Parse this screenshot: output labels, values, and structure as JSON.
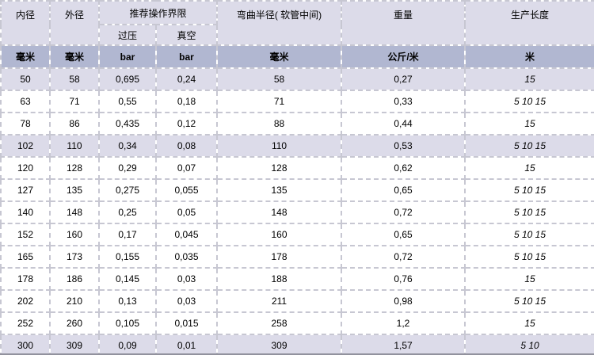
{
  "table": {
    "group_header": "推荐操作界限",
    "columns": [
      {
        "key": "inner_diameter",
        "label": "内径",
        "unit": "毫米"
      },
      {
        "key": "outer_diameter",
        "label": "外径",
        "unit": "毫米"
      },
      {
        "key": "overpressure",
        "label": "过压",
        "unit": "bar"
      },
      {
        "key": "vacuum",
        "label": "真空",
        "unit": "bar"
      },
      {
        "key": "bend_radius",
        "label": "弯曲半径( 软管中间)",
        "unit": "毫米"
      },
      {
        "key": "weight",
        "label": "重量",
        "unit": "公斤/米"
      },
      {
        "key": "production_length",
        "label": "生产长度",
        "unit": "米"
      }
    ],
    "rows": [
      {
        "shaded": true,
        "values": [
          "50",
          "58",
          "0,695",
          "0,24",
          "58",
          "0,27",
          "15"
        ]
      },
      {
        "shaded": false,
        "values": [
          "63",
          "71",
          "0,55",
          "0,18",
          "71",
          "0,33",
          "5 10 15"
        ]
      },
      {
        "shaded": false,
        "values": [
          "78",
          "86",
          "0,435",
          "0,12",
          "88",
          "0,44",
          "15"
        ]
      },
      {
        "shaded": true,
        "values": [
          "102",
          "110",
          "0,34",
          "0,08",
          "110",
          "0,53",
          "5 10 15"
        ]
      },
      {
        "shaded": false,
        "values": [
          "120",
          "128",
          "0,29",
          "0,07",
          "128",
          "0,62",
          "15"
        ]
      },
      {
        "shaded": false,
        "values": [
          "127",
          "135",
          "0,275",
          "0,055",
          "135",
          "0,65",
          "5 10 15"
        ]
      },
      {
        "shaded": false,
        "values": [
          "140",
          "148",
          "0,25",
          "0,05",
          "148",
          "0,72",
          "5 10 15"
        ]
      },
      {
        "shaded": false,
        "values": [
          "152",
          "160",
          "0,17",
          "0,045",
          "160",
          "0,65",
          "5 10 15"
        ]
      },
      {
        "shaded": false,
        "values": [
          "165",
          "173",
          "0,155",
          "0,035",
          "178",
          "0,72",
          "5 10 15"
        ]
      },
      {
        "shaded": false,
        "values": [
          "178",
          "186",
          "0,145",
          "0,03",
          "188",
          "0,76",
          "15"
        ]
      },
      {
        "shaded": false,
        "values": [
          "202",
          "210",
          "0,13",
          "0,03",
          "211",
          "0,98",
          "5 10 15"
        ]
      },
      {
        "shaded": false,
        "values": [
          "252",
          "260",
          "0,105",
          "0,015",
          "258",
          "1,2",
          "15"
        ]
      },
      {
        "shaded": true,
        "values": [
          "300",
          "309",
          "0,09",
          "0,01",
          "309",
          "1,57",
          "5 10"
        ]
      }
    ],
    "colors": {
      "header_bg": "#dcdbe9",
      "units_bg": "#b1b7d1",
      "shaded_row_bg": "#dcdbe9",
      "row_bg": "#ffffff",
      "border": "#c7c7d2",
      "bottom_edge": "#92929e",
      "text": "#000000"
    }
  }
}
